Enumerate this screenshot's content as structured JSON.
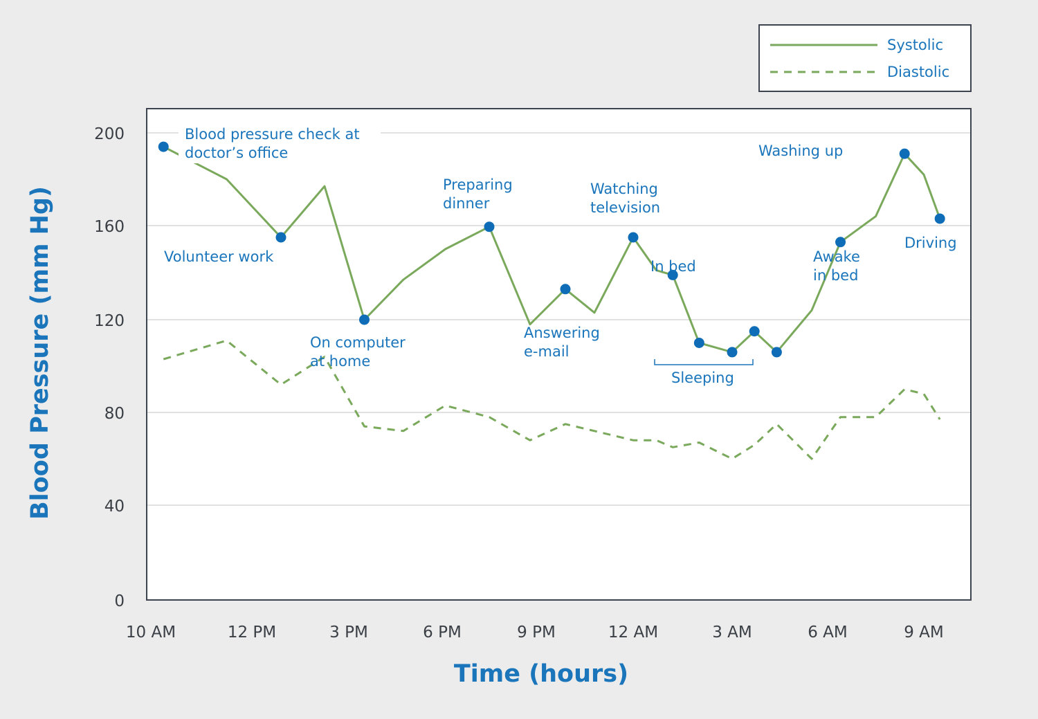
{
  "colors": {
    "systolic": "#7aa95c",
    "diastolic": "#7aa95c",
    "marker": "#0f6cb6",
    "annotation": "#1a75bb",
    "grid": "#cfcfcf",
    "frame": "#3d4450"
  },
  "chart_data": {
    "type": "line",
    "xlabel": "Time (hours)",
    "ylabel": "Blood Pressure (mm Hg)",
    "ylim": [
      0,
      210
    ],
    "y_ticks": [
      "0",
      "40",
      "80",
      "120",
      "160",
      "200"
    ],
    "x_ticks": [
      "10 AM",
      "12 PM",
      "3 PM",
      "6 PM",
      "9 PM",
      "12 AM",
      "3 AM",
      "6 AM",
      "9 AM"
    ],
    "x_tick_values": [
      10,
      12,
      15,
      18,
      21,
      24,
      27,
      30,
      33
    ],
    "grid": true,
    "legend_position": "top-right",
    "series": [
      {
        "name": "Systolic",
        "style": "solid",
        "points": [
          [
            10.25,
            194
          ],
          [
            11.5,
            180
          ],
          [
            12.9,
            155
          ],
          [
            14.25,
            177
          ],
          [
            15.5,
            120
          ],
          [
            16.75,
            137
          ],
          [
            18.1,
            150
          ],
          [
            19.5,
            159.5
          ],
          [
            20.8,
            118
          ],
          [
            21.9,
            133
          ],
          [
            22.8,
            123
          ],
          [
            24.0,
            155
          ],
          [
            24.7,
            141
          ],
          [
            25.2,
            139
          ],
          [
            26.0,
            110
          ],
          [
            27.0,
            106
          ],
          [
            27.7,
            115
          ],
          [
            28.4,
            106
          ],
          [
            29.5,
            124
          ],
          [
            30.4,
            153
          ],
          [
            31.5,
            164
          ],
          [
            32.4,
            191
          ],
          [
            33.0,
            182
          ],
          [
            33.5,
            163
          ]
        ]
      },
      {
        "name": "Diastolic",
        "style": "dashed",
        "points": [
          [
            10.25,
            103
          ],
          [
            11.5,
            111
          ],
          [
            12.9,
            92
          ],
          [
            14.25,
            104
          ],
          [
            15.5,
            74
          ],
          [
            16.75,
            72
          ],
          [
            18.1,
            83
          ],
          [
            19.5,
            78
          ],
          [
            20.8,
            68
          ],
          [
            21.9,
            75
          ],
          [
            22.8,
            72
          ],
          [
            24.0,
            68
          ],
          [
            24.7,
            68
          ],
          [
            25.2,
            65
          ],
          [
            26.0,
            67
          ],
          [
            27.0,
            60
          ],
          [
            27.7,
            66
          ],
          [
            28.4,
            75
          ],
          [
            29.5,
            60
          ],
          [
            30.4,
            78
          ],
          [
            31.5,
            78
          ],
          [
            32.4,
            90
          ],
          [
            33.0,
            88
          ],
          [
            33.5,
            77
          ]
        ]
      }
    ],
    "markers": {
      "series": "Systolic",
      "point_indices": [
        0,
        2,
        4,
        7,
        9,
        11,
        13,
        14,
        15,
        16,
        17,
        19,
        21,
        23
      ]
    },
    "annotations": [
      {
        "lines": [
          "Blood pressure check at",
          "doctor’s office"
        ]
      },
      {
        "lines": [
          "Volunteer work"
        ]
      },
      {
        "lines": [
          "On computer",
          "at home"
        ]
      },
      {
        "lines": [
          "Preparing",
          "dinner"
        ]
      },
      {
        "lines": [
          "Answering",
          "e-mail"
        ]
      },
      {
        "lines": [
          "Watching",
          "television"
        ]
      },
      {
        "lines": [
          "In bed"
        ]
      },
      {
        "lines": [
          "Sleeping"
        ]
      },
      {
        "lines": [
          "Awake",
          "in bed"
        ]
      },
      {
        "lines": [
          "Washing up"
        ]
      },
      {
        "lines": [
          "Driving"
        ]
      }
    ]
  }
}
